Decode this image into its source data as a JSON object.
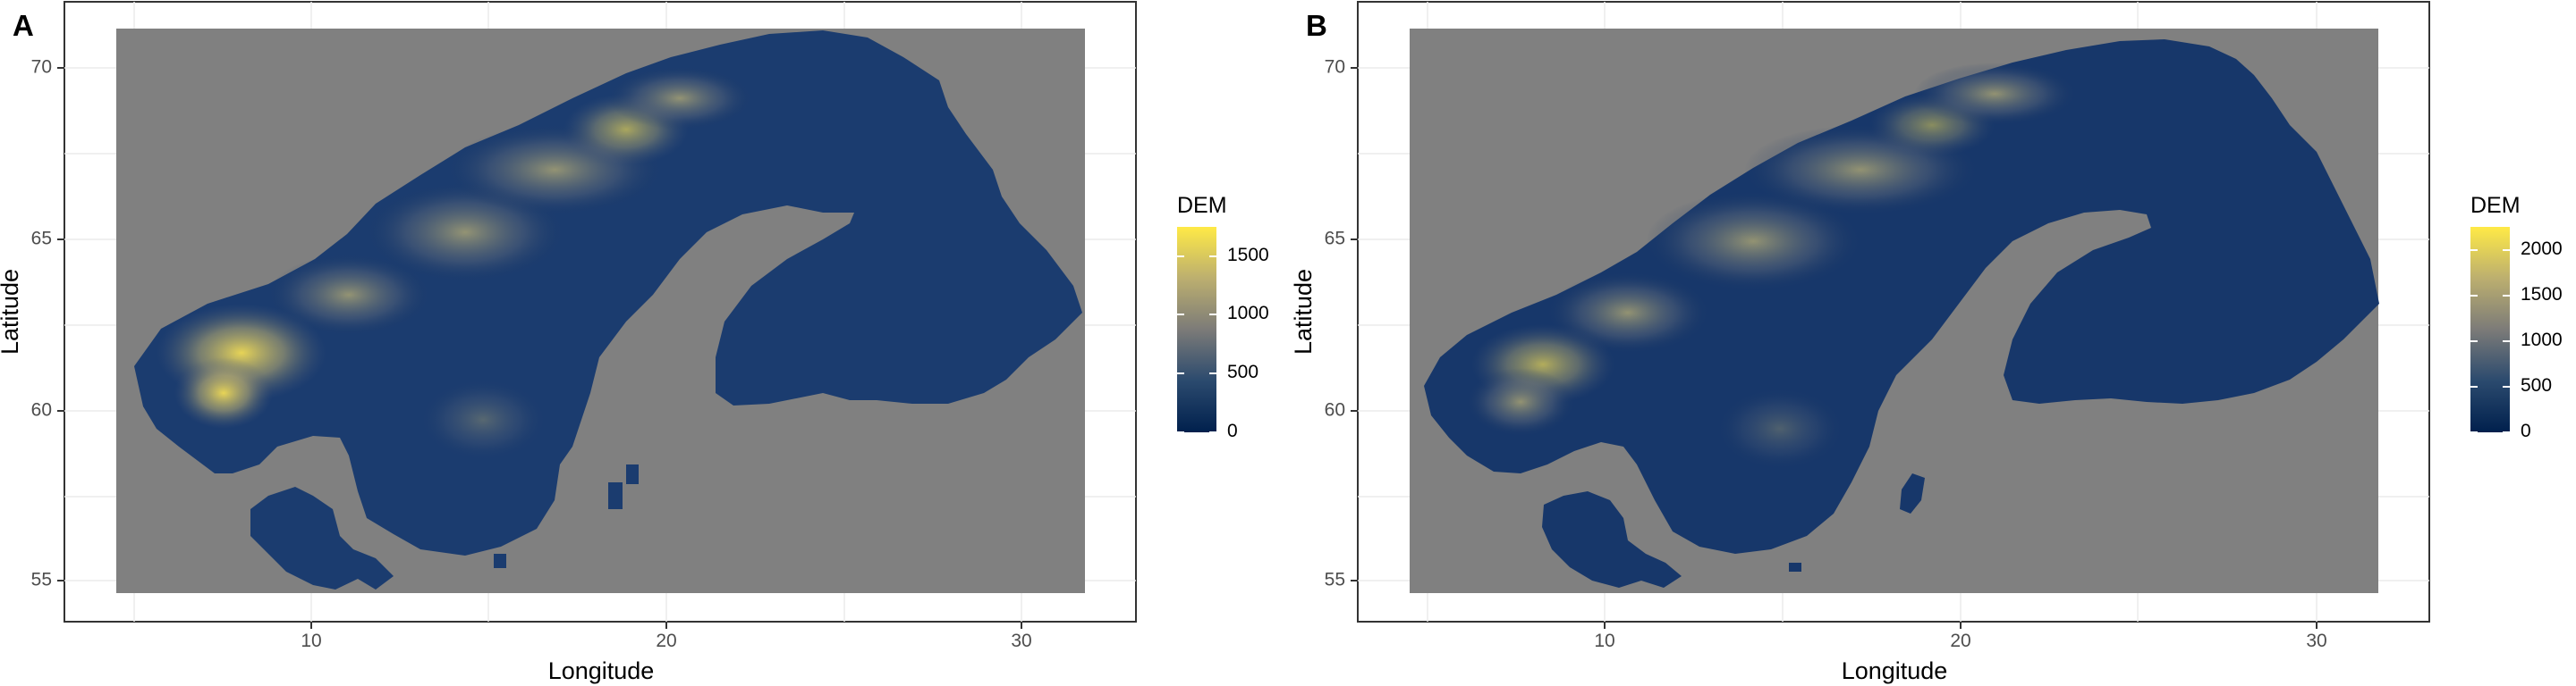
{
  "palette": {
    "background_raster": "#808080",
    "panel_bg": "#ffffff",
    "grid": "#ebebeb",
    "border": "#333333",
    "low": "#00204d",
    "mid": "#7c7b78",
    "high": "#ffea46"
  },
  "panels": [
    {
      "tag": "A",
      "xlabel": "Longitude",
      "ylabel": "Latitude",
      "xticks": [
        "10",
        "20",
        "30"
      ],
      "yticks": [
        "55",
        "60",
        "65",
        "70"
      ],
      "legend_title": "DEM",
      "legend_ticks": [
        "1500",
        "1000",
        "500",
        "0"
      ],
      "legend_max": 1750,
      "resolution": "coarse"
    },
    {
      "tag": "B",
      "xlabel": "Longitude",
      "ylabel": "Latitude",
      "xticks": [
        "10",
        "20",
        "30"
      ],
      "yticks": [
        "55",
        "60",
        "65",
        "70"
      ],
      "legend_title": "DEM",
      "legend_ticks": [
        "2000",
        "1500",
        "1000",
        "500",
        "0"
      ],
      "legend_max": 2250,
      "resolution": "fine"
    }
  ]
}
